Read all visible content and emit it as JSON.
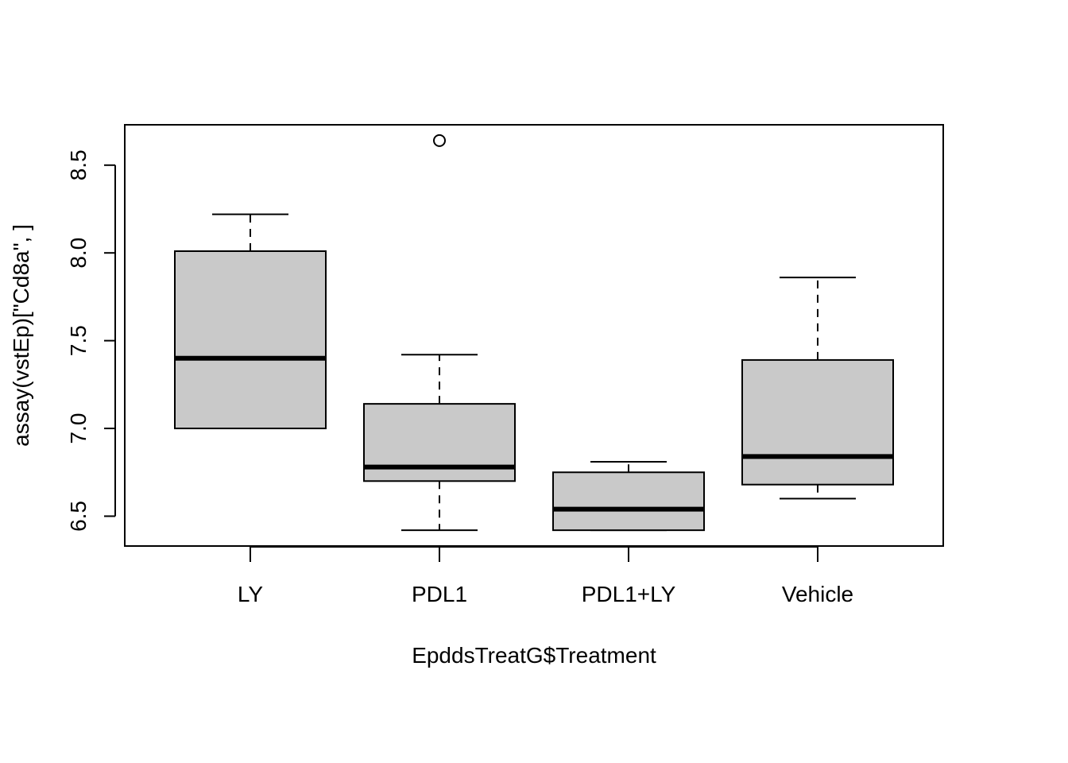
{
  "chart_data": {
    "type": "boxplot",
    "title": "",
    "xlabel": "EpddsTreatG$Treatment",
    "ylabel": "assay(vstEp)[\"Cd8a\", ]",
    "ylim": [
      6.33,
      8.73
    ],
    "yticks": [
      6.5,
      7.0,
      7.5,
      8.0,
      8.5
    ],
    "ytick_labels": [
      "6.5",
      "7.0",
      "7.5",
      "8.0",
      "8.5"
    ],
    "grid": false,
    "box_fill": "#c9c9c9",
    "categories": [
      "LY",
      "PDL1",
      "PDL1+LY",
      "Vehicle"
    ],
    "boxes": [
      {
        "name": "LY",
        "whisker_low": 7.0,
        "q1": 7.0,
        "median": 7.4,
        "q3": 8.01,
        "whisker_high": 8.22,
        "outliers": []
      },
      {
        "name": "PDL1",
        "whisker_low": 6.42,
        "q1": 6.7,
        "median": 6.78,
        "q3": 7.14,
        "whisker_high": 7.42,
        "outliers": [
          8.64
        ]
      },
      {
        "name": "PDL1+LY",
        "whisker_low": 6.42,
        "q1": 6.42,
        "median": 6.54,
        "q3": 6.75,
        "whisker_high": 6.81,
        "outliers": []
      },
      {
        "name": "Vehicle",
        "whisker_low": 6.6,
        "q1": 6.68,
        "median": 6.84,
        "q3": 7.39,
        "whisker_high": 7.86,
        "outliers": []
      }
    ]
  }
}
